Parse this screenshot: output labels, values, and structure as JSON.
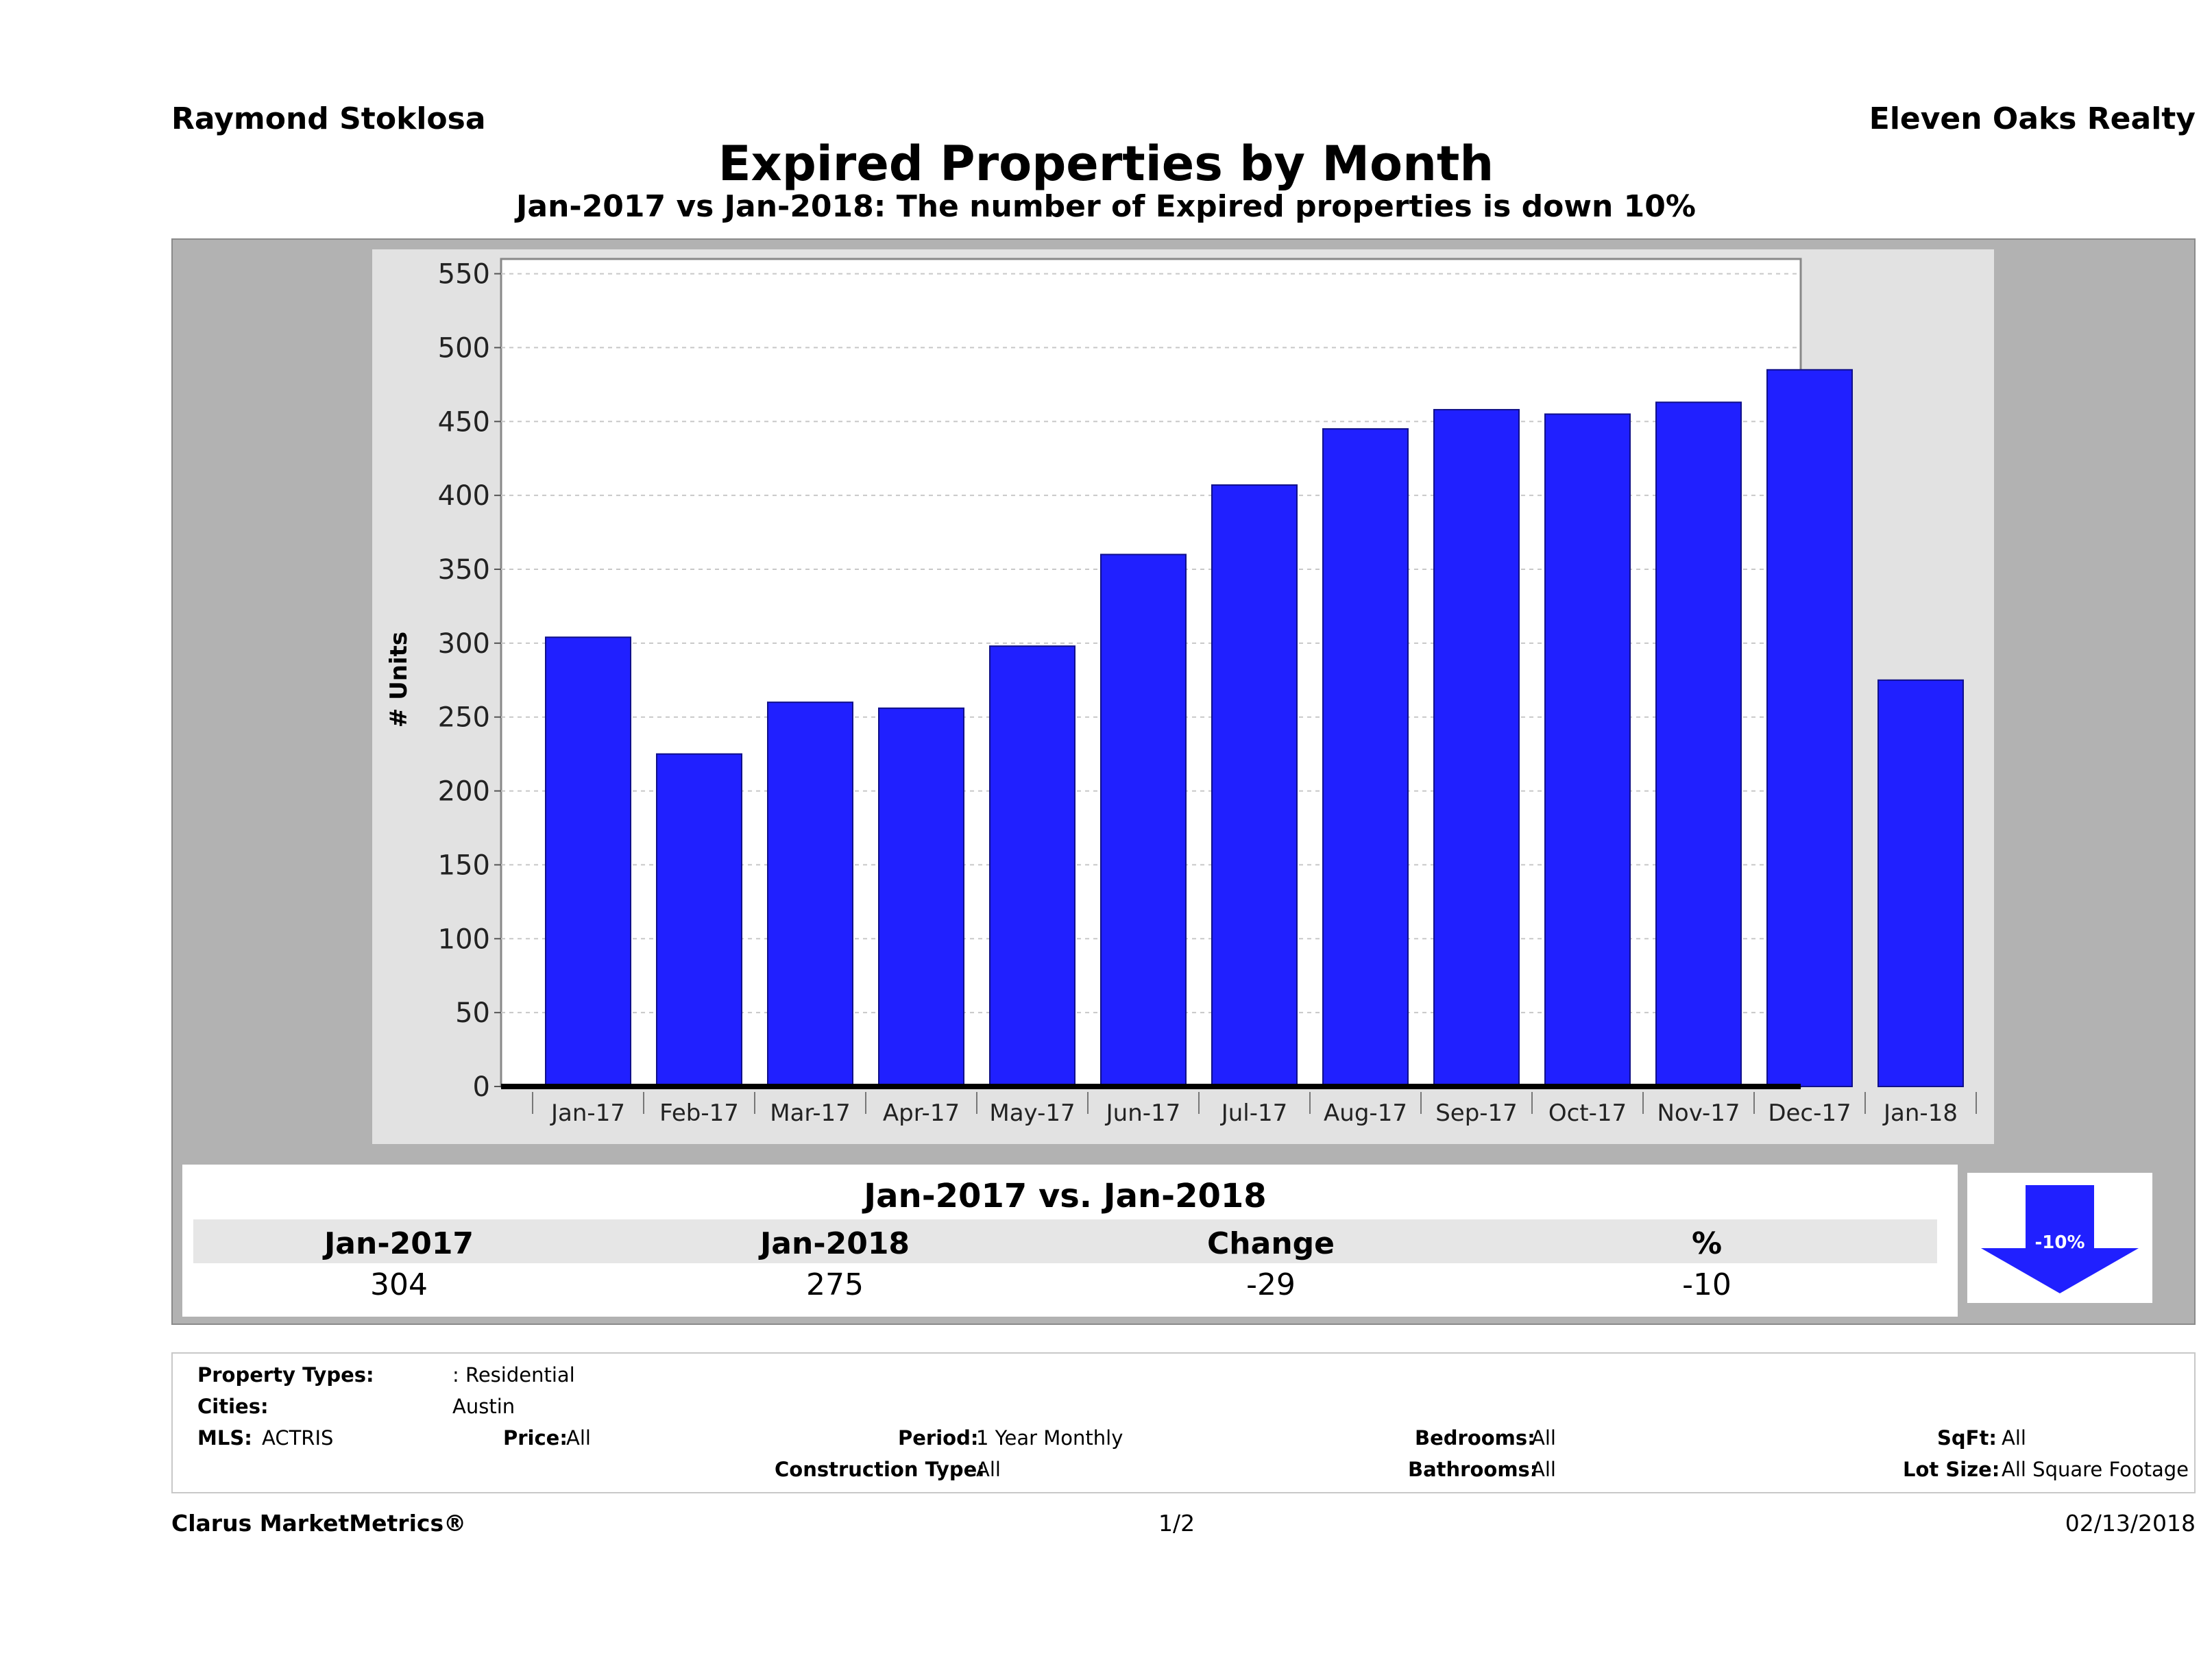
{
  "header": {
    "agent": "Raymond Stoklosa",
    "company": "Eleven Oaks Realty",
    "title": "Expired Properties by Month",
    "subtitle": "Jan-2017 vs Jan-2018: The number of Expired  properties is down 10%"
  },
  "chart_data": {
    "type": "bar",
    "categories": [
      "Jan-17",
      "Feb-17",
      "Mar-17",
      "Apr-17",
      "May-17",
      "Jun-17",
      "Jul-17",
      "Aug-17",
      "Sep-17",
      "Oct-17",
      "Nov-17",
      "Dec-17",
      "Jan-18"
    ],
    "values": [
      304,
      225,
      260,
      256,
      298,
      360,
      407,
      445,
      458,
      455,
      463,
      485,
      275
    ],
    "ylabel": "# Units",
    "xlabel": "",
    "ylim": [
      0,
      560
    ],
    "yticks": [
      0,
      50,
      100,
      150,
      200,
      250,
      300,
      350,
      400,
      450,
      500,
      550
    ],
    "grid": true,
    "bar_color": "#2020ff"
  },
  "summary": {
    "title": "Jan-2017 vs. Jan-2018",
    "headers": [
      "Jan-2017",
      "Jan-2018",
      "Change",
      "%"
    ],
    "values": [
      "304",
      "275",
      "-29",
      "-10"
    ],
    "badge": "-10%",
    "badge_color": "#2020ff"
  },
  "criteria": {
    "property_types_label": "Property Types:",
    "property_types_value": ": Residential",
    "cities_label": "Cities:",
    "cities_value": "Austin",
    "mls_label": "MLS:",
    "mls_value": "ACTRIS",
    "price_label": "Price:",
    "price_value": "All",
    "period_label": "Period:",
    "period_value": "1 Year Monthly",
    "construction_label": "Construction Type:",
    "construction_value": "All",
    "bedrooms_label": "Bedrooms:",
    "bedrooms_value": "All",
    "bathrooms_label": "Bathrooms:",
    "bathrooms_value": "All",
    "sqft_label": "SqFt:",
    "sqft_value": "All",
    "lotsize_label": "Lot Size:",
    "lotsize_value": "All Square Footage"
  },
  "footer": {
    "brand": "Clarus MarketMetrics®",
    "page": "1/2",
    "date": "02/13/2018"
  }
}
